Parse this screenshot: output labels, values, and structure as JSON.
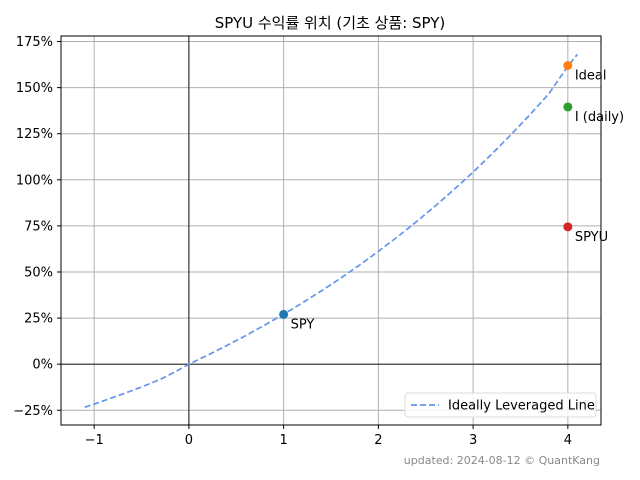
{
  "chart_data": {
    "type": "scatter",
    "title": "SPYU 수익률 위치 (기초 상품: SPY)",
    "xlabel": "",
    "ylabel": "",
    "xlim": [
      -1.35,
      4.35
    ],
    "ylim": [
      -0.33,
      1.78
    ],
    "grid": true,
    "x_ticks": [
      -1,
      0,
      1,
      2,
      3,
      4
    ],
    "x_tick_labels": [
      "−1",
      "0",
      "1",
      "2",
      "3",
      "4"
    ],
    "y_ticks": [
      -0.25,
      0,
      0.25,
      0.5,
      0.75,
      1.0,
      1.25,
      1.5,
      1.75
    ],
    "y_tick_labels": [
      "−25%",
      "0%",
      "25%",
      "50%",
      "75%",
      "100%",
      "125%",
      "150%",
      "175%"
    ],
    "curve": {
      "name": "Ideally Leveraged Line",
      "style": "dashed",
      "color": "#6495ed",
      "x": [
        -1.1,
        -0.9,
        -0.7,
        -0.5,
        -0.3,
        -0.1,
        0,
        0.2,
        0.4,
        0.6,
        0.8,
        1.0,
        1.2,
        1.4,
        1.6,
        1.8,
        2.0,
        2.2,
        2.4,
        2.6,
        2.8,
        3.0,
        3.2,
        3.4,
        3.6,
        3.8,
        4.0,
        4.1
      ],
      "y": [
        -0.234,
        -0.199,
        -0.162,
        -0.124,
        -0.082,
        -0.029,
        0,
        0.049,
        0.101,
        0.155,
        0.212,
        0.271,
        0.333,
        0.398,
        0.466,
        0.537,
        0.612,
        0.69,
        0.772,
        0.858,
        0.948,
        1.042,
        1.141,
        1.245,
        1.353,
        1.467,
        1.616,
        1.68
      ]
    },
    "points": [
      {
        "label": "SPY",
        "x": 1.0,
        "y": 0.27,
        "color": "#1f77b4"
      },
      {
        "label": "Ideal",
        "x": 4.0,
        "y": 1.62,
        "color": "#ff7f0e"
      },
      {
        "label": "I (daily)",
        "x": 4.0,
        "y": 1.395,
        "color": "#2ca02c"
      },
      {
        "label": "SPYU",
        "x": 4.0,
        "y": 0.745,
        "color": "#d62728"
      }
    ],
    "legend": {
      "position": "bottom-right",
      "entries": [
        "Ideally Leveraged Line"
      ]
    },
    "footer": "updated: 2024-08-12 © QuantKang"
  }
}
